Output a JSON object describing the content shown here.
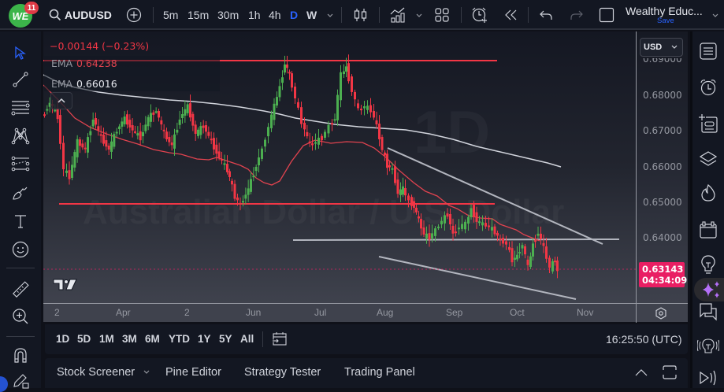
{
  "app": {
    "notification_count": "11",
    "logo_text": "WE"
  },
  "header": {
    "symbol": "AUDUSD",
    "timeframes": [
      "5m",
      "15m",
      "30m",
      "1h",
      "4h",
      "D",
      "W"
    ],
    "active_timeframe": "D",
    "layout_name": "Wealthy Educ...",
    "save_label": "Save"
  },
  "legend": {
    "change": "−0.00144 (−0.23%)",
    "ema1_label": "EMA",
    "ema1_value": "0.64238",
    "ema2_label": "EMA",
    "ema2_value": "0.66016"
  },
  "watermark": {
    "interval": "1D",
    "name": "Australian Dollar / U.S. Dollar"
  },
  "price_axis": {
    "currency": "USD",
    "labels": [
      "0.69000",
      "0.68000",
      "0.67000",
      "0.66000",
      "0.65000",
      "0.64000"
    ],
    "last_price": "0.63143",
    "countdown": "04:34:09"
  },
  "time_axis": {
    "labels": [
      "2",
      "Apr",
      "2",
      "Jun",
      "Jul",
      "Aug",
      "Sep",
      "Oct",
      "Nov"
    ]
  },
  "range_bar": {
    "ranges": [
      "1D",
      "5D",
      "1M",
      "3M",
      "6M",
      "YTD",
      "1Y",
      "5Y",
      "All"
    ],
    "clock": "16:25:50 (UTC)"
  },
  "bottom_panel": {
    "tabs": [
      "Stock Screener",
      "Pine Editor",
      "Strategy Tester",
      "Trading Panel"
    ]
  },
  "colors": {
    "up": "#4caf50",
    "down": "#f23645",
    "ema_fast": "#e0434f",
    "ema_slow": "#d1d4dc",
    "horizontal_level": "#f23645",
    "channel": "#b2b5be",
    "accent": "#2962ff",
    "last_price_bg": "#e91e63"
  },
  "chart_data": {
    "type": "candlestick",
    "symbol": "AUDUSD",
    "interval": "1D",
    "ylim": [
      0.625,
      0.692
    ],
    "x_labels": [
      "2",
      "Apr",
      "2",
      "Jun",
      "Jul",
      "Aug",
      "Sep",
      "Oct",
      "Nov"
    ],
    "y_ticks": [
      0.69,
      0.68,
      0.67,
      0.66,
      0.65,
      0.64
    ],
    "last_price": 0.63143,
    "ema_fast_value": 0.64238,
    "ema_slow_value": 0.66016,
    "horizontal_levels": [
      0.6895,
      0.6498
    ],
    "support_line": 0.6398,
    "descending_channel": {
      "upper": [
        [
          "Aug-01",
          0.667
        ],
        [
          "Nov-03",
          0.6385
        ]
      ],
      "lower": [
        [
          "Jul-31",
          0.6425
        ],
        [
          "Nov-01",
          0.6265
        ]
      ]
    }
  }
}
